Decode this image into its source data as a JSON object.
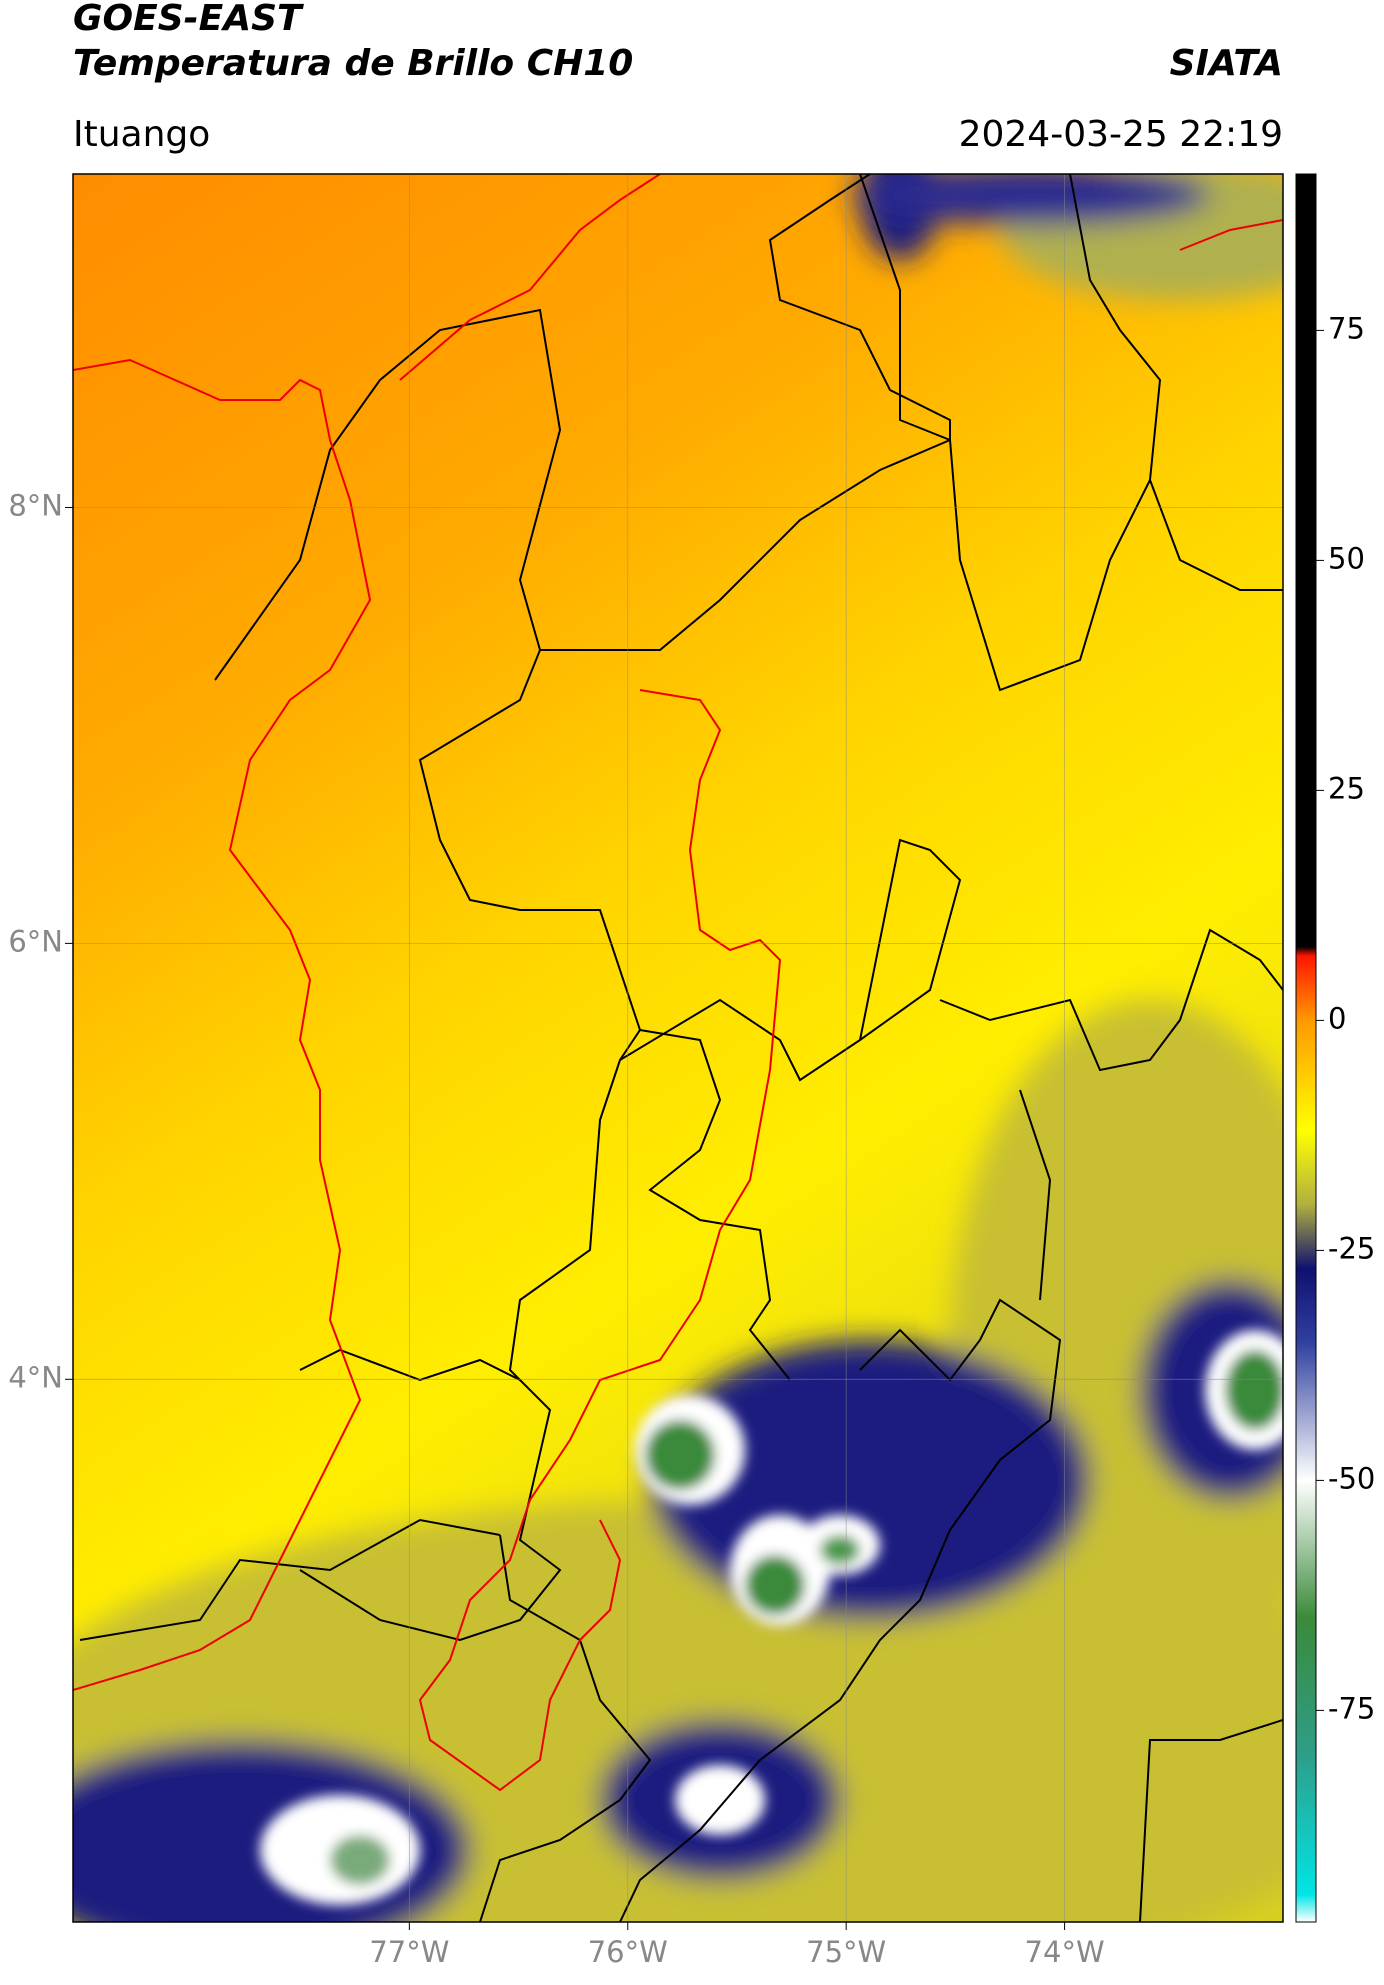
{
  "header": {
    "title": "GOES-EAST",
    "subtitle": "Temperatura de Brillo CH10",
    "source": "SIATA",
    "location": "Ituango",
    "datetime": "2024-03-25 22:19"
  },
  "map": {
    "lat_range": [
      1.51,
      9.53
    ],
    "lon_range": [
      -78.54,
      -73.0
    ],
    "lat_ticks": [
      {
        "value": 8,
        "label": "8°N"
      },
      {
        "value": 6,
        "label": "6°N"
      },
      {
        "value": 4,
        "label": "4°N"
      }
    ],
    "lon_ticks": [
      {
        "value": -77,
        "label": "77°W"
      },
      {
        "value": -76,
        "label": "76°W"
      },
      {
        "value": -75,
        "label": "75°W"
      },
      {
        "value": -74,
        "label": "74°W"
      }
    ],
    "grid": true
  },
  "colorbar": {
    "lim": [
      -98,
      92
    ],
    "ticks": [
      75,
      50,
      25,
      0,
      -25,
      -50,
      -75
    ],
    "stops": [
      {
        "value": -98,
        "color": "#ffffff"
      },
      {
        "value": -95,
        "color": "#00e5e5"
      },
      {
        "value": -80,
        "color": "#2e9e8a"
      },
      {
        "value": -65,
        "color": "#3a8a3a"
      },
      {
        "value": -50,
        "color": "#ffffff"
      },
      {
        "value": -35,
        "color": "#3040a0"
      },
      {
        "value": -27,
        "color": "#101070"
      },
      {
        "value": -20,
        "color": "#b0b040"
      },
      {
        "value": -12,
        "color": "#ffff00"
      },
      {
        "value": 0,
        "color": "#ff9900"
      },
      {
        "value": 7,
        "color": "#ff1500"
      },
      {
        "value": 8,
        "color": "#000000"
      },
      {
        "value": 92,
        "color": "#000000"
      }
    ]
  }
}
